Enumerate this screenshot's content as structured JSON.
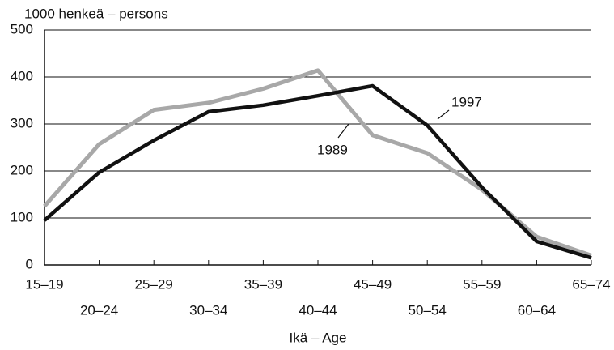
{
  "chart_data": {
    "type": "line",
    "y_unit_label": "1000 henkeä – persons",
    "x_label": "Ikä – Age",
    "categories": [
      "15–19",
      "20–24",
      "25–29",
      "30–34",
      "35–39",
      "40–44",
      "45–49",
      "50–54",
      "55–59",
      "60–64",
      "65–74"
    ],
    "series": [
      {
        "name": "1997",
        "color": "#111111",
        "values": [
          95,
          197,
          265,
          326,
          340,
          360,
          381,
          297,
          165,
          50,
          15
        ]
      },
      {
        "name": "1989",
        "color": "#a8a8a8",
        "values": [
          125,
          257,
          330,
          345,
          375,
          414,
          276,
          238,
          160,
          60,
          20
        ]
      }
    ],
    "ylim": [
      0,
      500
    ],
    "yticks": [
      0,
      100,
      200,
      300,
      400,
      500
    ],
    "grid": true
  }
}
